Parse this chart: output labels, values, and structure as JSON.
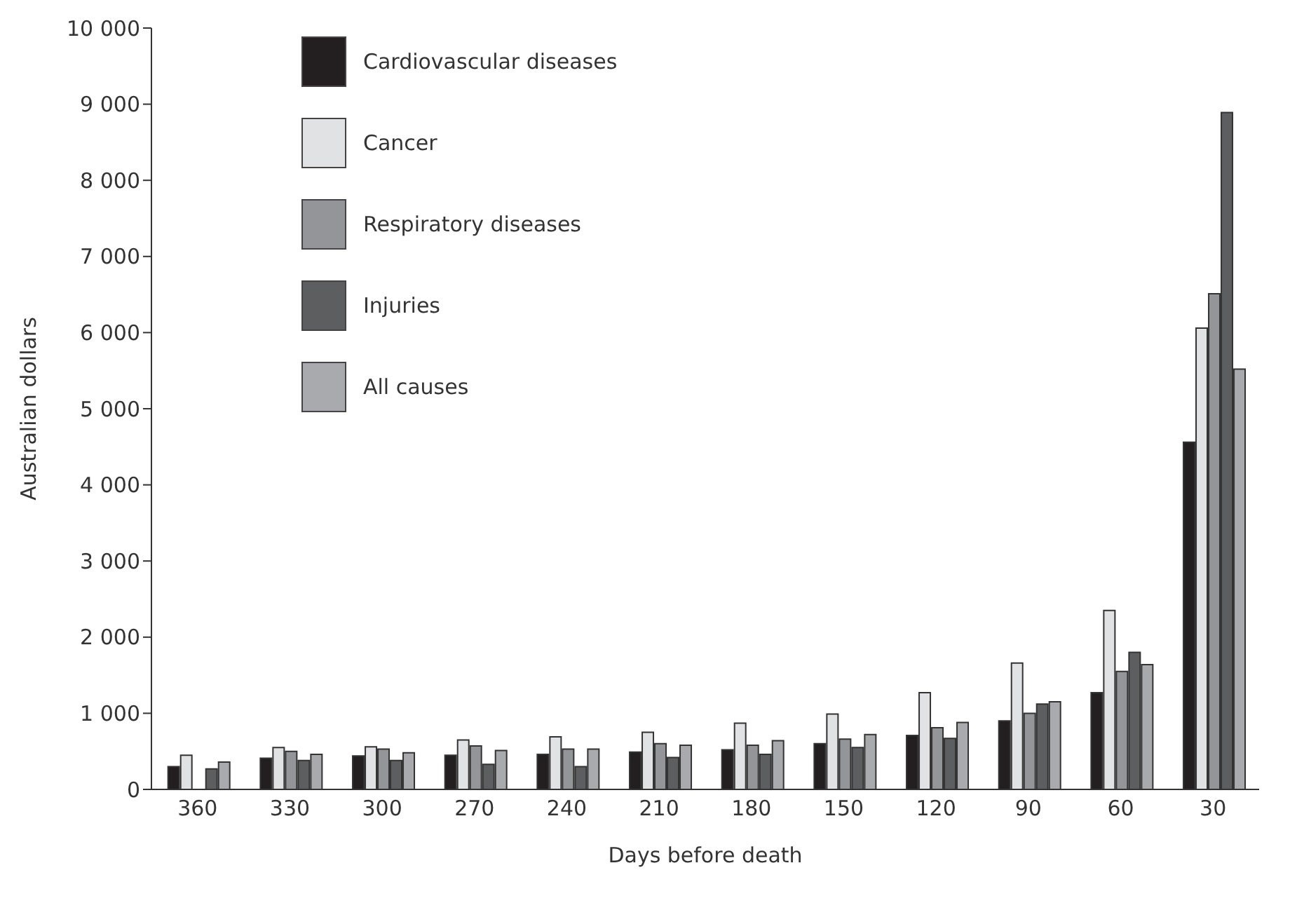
{
  "chart_data": {
    "type": "bar",
    "xlabel": "Days before death",
    "ylabel": "Australian dollars",
    "categories": [
      "360",
      "330",
      "300",
      "270",
      "240",
      "210",
      "180",
      "150",
      "120",
      "90",
      "60",
      "30"
    ],
    "series": [
      {
        "name": "Cardiovascular diseases",
        "color": "#231f20",
        "values": [
          300,
          410,
          440,
          450,
          460,
          490,
          520,
          600,
          710,
          900,
          1270,
          4560
        ]
      },
      {
        "name": "Cancer",
        "color": "#e1e2e4",
        "values": [
          450,
          550,
          560,
          650,
          690,
          750,
          870,
          990,
          1270,
          1660,
          2350,
          6060
        ]
      },
      {
        "name": "Respiratory diseases",
        "color": "#939598",
        "values": [
          null,
          500,
          530,
          570,
          530,
          600,
          580,
          660,
          810,
          1000,
          1550,
          6510
        ]
      },
      {
        "name": "Injuries",
        "color": "#5d5e60",
        "values": [
          270,
          380,
          380,
          330,
          300,
          420,
          460,
          550,
          670,
          1120,
          1800,
          8890
        ]
      },
      {
        "name": "All causes",
        "color": "#a9aaad",
        "values": [
          360,
          460,
          480,
          510,
          530,
          580,
          640,
          720,
          880,
          1150,
          1640,
          5520
        ]
      }
    ],
    "ylim": [
      0,
      10000
    ],
    "yticks": [
      0,
      {
        "value": 1000,
        "label": "1 000"
      },
      {
        "value": 2000,
        "label": "2 000"
      },
      {
        "value": 3000,
        "label": "3 000"
      },
      {
        "value": 4000,
        "label": "4 000"
      },
      {
        "value": 5000,
        "label": "5 000"
      },
      {
        "value": 6000,
        "label": "6 000"
      },
      {
        "value": 7000,
        "label": "7 000"
      },
      {
        "value": 8000,
        "label": "8 000"
      },
      {
        "value": 9000,
        "label": "9 000"
      },
      {
        "value": 10000,
        "label": "10 000"
      }
    ],
    "grid": false,
    "legend": "top left"
  }
}
